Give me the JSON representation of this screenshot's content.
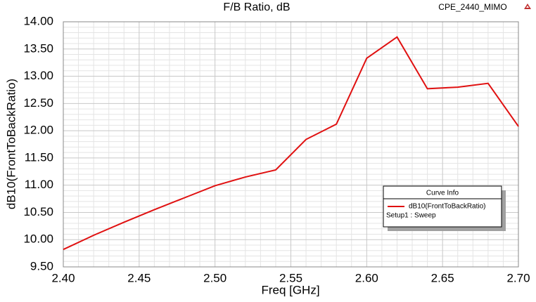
{
  "chart_data": {
    "type": "line",
    "title": "F/B Ratio, dB",
    "project": "CPE_2440_MIMO",
    "x_label": "Freq [GHz]",
    "y_label": "dB10(FrontToBackRatio)",
    "x": [
      2.4,
      2.42,
      2.44,
      2.46,
      2.48,
      2.5,
      2.52,
      2.54,
      2.56,
      2.58,
      2.6,
      2.62,
      2.64,
      2.66,
      2.68,
      2.7
    ],
    "series": [
      {
        "name": "dB10(FrontToBackRatio)",
        "sweep": "Setup1 : Sweep",
        "color": "#e01010",
        "values": [
          9.82,
          10.08,
          10.32,
          10.55,
          10.77,
          10.99,
          11.15,
          11.28,
          11.84,
          12.12,
          13.33,
          13.72,
          12.77,
          12.8,
          12.87,
          12.08
        ]
      }
    ],
    "legend_title": "Curve Info",
    "xlim": [
      2.4,
      2.7
    ],
    "xticks": [
      {
        "value": 2.4,
        "label": "2.40"
      },
      {
        "value": 2.45,
        "label": "2.45"
      },
      {
        "value": 2.5,
        "label": "2.50"
      },
      {
        "value": 2.55,
        "label": "2.55"
      },
      {
        "value": 2.6,
        "label": "2.60"
      },
      {
        "value": 2.65,
        "label": "2.65"
      },
      {
        "value": 2.7,
        "label": "2.70"
      }
    ],
    "ylim": [
      9.5,
      14.0
    ],
    "yticks": [
      {
        "value": 9.5,
        "label": "9.50"
      },
      {
        "value": 10.0,
        "label": "10.00"
      },
      {
        "value": 10.5,
        "label": "10.50"
      },
      {
        "value": 11.0,
        "label": "11.00"
      },
      {
        "value": 11.5,
        "label": "11.50"
      },
      {
        "value": 12.0,
        "label": "12.00"
      },
      {
        "value": 12.5,
        "label": "12.50"
      },
      {
        "value": 13.0,
        "label": "13.00"
      },
      {
        "value": 13.5,
        "label": "13.50"
      },
      {
        "value": 14.0,
        "label": "14.00"
      }
    ],
    "grid": true
  }
}
